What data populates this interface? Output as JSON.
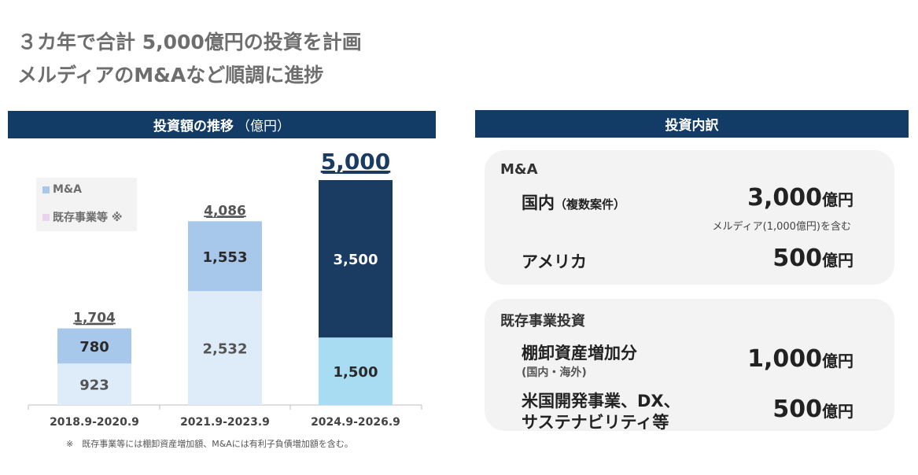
{
  "header": {
    "title_line1": "３カ年で合計 5,000億円の投資を計画",
    "title_line2": "メルディアのM&Aなど順調に進捗"
  },
  "left_panel": {
    "heading": "投資額の推移",
    "heading_unit": "（億円）",
    "legend": [
      {
        "label": "M&A",
        "color": "#a7c8ea"
      },
      {
        "label": "既存事業等 ※",
        "color": "#ead3ef"
      }
    ],
    "footnote": "※　既存事業等には棚卸資産増加額、M&Aには有利子負債増加額を含む。"
  },
  "chart_data": {
    "type": "bar",
    "stacked": true,
    "categories": [
      "2018.9-2020.9",
      "2021.9-2023.9",
      "2024.9-2026.9"
    ],
    "series": [
      {
        "name": "既存事業等 ※",
        "values": [
          923,
          2532,
          1500
        ],
        "labels": [
          "923",
          "2,532",
          "1,500"
        ],
        "colors": [
          "#deebf8",
          "#deebf8",
          "#a8dcf3"
        ]
      },
      {
        "name": "M&A",
        "values": [
          780,
          1553,
          3500
        ],
        "labels": [
          "780",
          "1,553",
          "3,500"
        ],
        "colors": [
          "#a7c8ea",
          "#a7c8ea",
          "#1a3b62"
        ]
      }
    ],
    "totals": [
      1704,
      4086,
      5000
    ],
    "total_labels": [
      "1,704",
      "4,086",
      "5,000"
    ],
    "ylim": [
      0,
      5000
    ],
    "grid": false
  },
  "right_panel": {
    "heading": "投資内訳",
    "ma": {
      "title": "M&A",
      "domestic_label": "国内",
      "domestic_sub": "（複数案件）",
      "domestic_value": "3,000",
      "domestic_unit": "億円",
      "domestic_note": "メルディア(1,000億円)を含む",
      "america_label": "アメリカ",
      "america_value": "500",
      "america_unit": "億円"
    },
    "existing": {
      "title": "既存事業投資",
      "inventory_label": "棚卸資産増加分",
      "inventory_sub": "(国内・海外)",
      "inventory_value": "1,000",
      "inventory_unit": "億円",
      "us_label_line1": "米国開発事業、DX、",
      "us_label_line2": "サステナビリティ等",
      "us_value": "500",
      "us_unit": "億円"
    }
  }
}
